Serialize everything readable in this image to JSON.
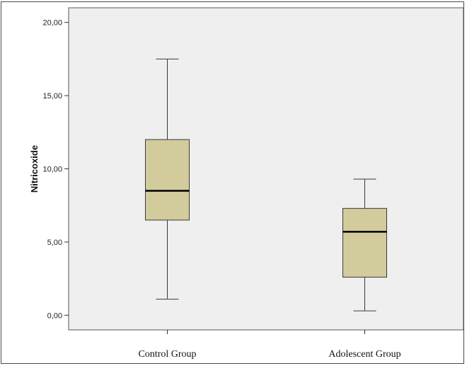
{
  "chart_data": {
    "type": "boxplot",
    "title": "",
    "xlabel": "",
    "ylabel": "Nitricoxide",
    "ylim": [
      -1,
      21
    ],
    "yticks": [
      0,
      5,
      10,
      15,
      20
    ],
    "ytick_labels": [
      "0,00",
      "5,00",
      "10,00",
      "15,00",
      "20,00"
    ],
    "grid": false,
    "categories": [
      "Control Group",
      "Adolescent Group"
    ],
    "boxes": [
      {
        "category": "Control Group",
        "min": 1.1,
        "q1": 6.5,
        "median": 8.5,
        "q3": 12.0,
        "max": 17.5
      },
      {
        "category": "Adolescent Group",
        "min": 0.3,
        "q1": 2.6,
        "median": 5.7,
        "q3": 7.3,
        "max": 9.3
      }
    ],
    "colors": {
      "plot_background": "#efefef",
      "box_fill": "#d2cb9c",
      "line": "#3a3a3a",
      "median": "#000000"
    }
  }
}
